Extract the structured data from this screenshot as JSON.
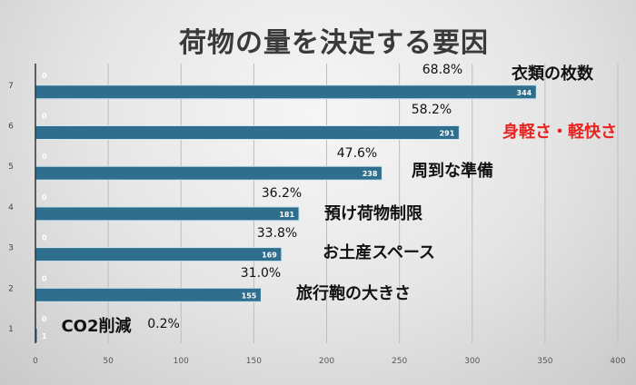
{
  "chart_data": {
    "type": "bar",
    "orientation": "horizontal",
    "title": "荷物の量を決定する要因",
    "categories": [
      "1",
      "2",
      "3",
      "4",
      "5",
      "6",
      "7"
    ],
    "values": [
      1,
      155,
      169,
      181,
      238,
      291,
      344
    ],
    "secondary_values": [
      0,
      0,
      0,
      0,
      0,
      0,
      0
    ],
    "percent_labels": [
      "0.2%",
      "31.0%",
      "33.8%",
      "36.2%",
      "47.6%",
      "58.2%",
      "68.8%"
    ],
    "category_names": [
      "CO2削減",
      "旅行鞄の大きさ",
      "お土産スペース",
      "預け荷物制限",
      "周到な準備",
      "身軽さ・軽快さ",
      "衣類の枚数"
    ],
    "highlight": {
      "index": 5,
      "color": "#e8231f"
    },
    "bar_color": "#2f6e8c",
    "xlim": [
      0,
      400
    ],
    "xticks": [
      0,
      50,
      100,
      150,
      200,
      250,
      300,
      350,
      400
    ],
    "grid": true,
    "xlabel": "",
    "ylabel": ""
  }
}
